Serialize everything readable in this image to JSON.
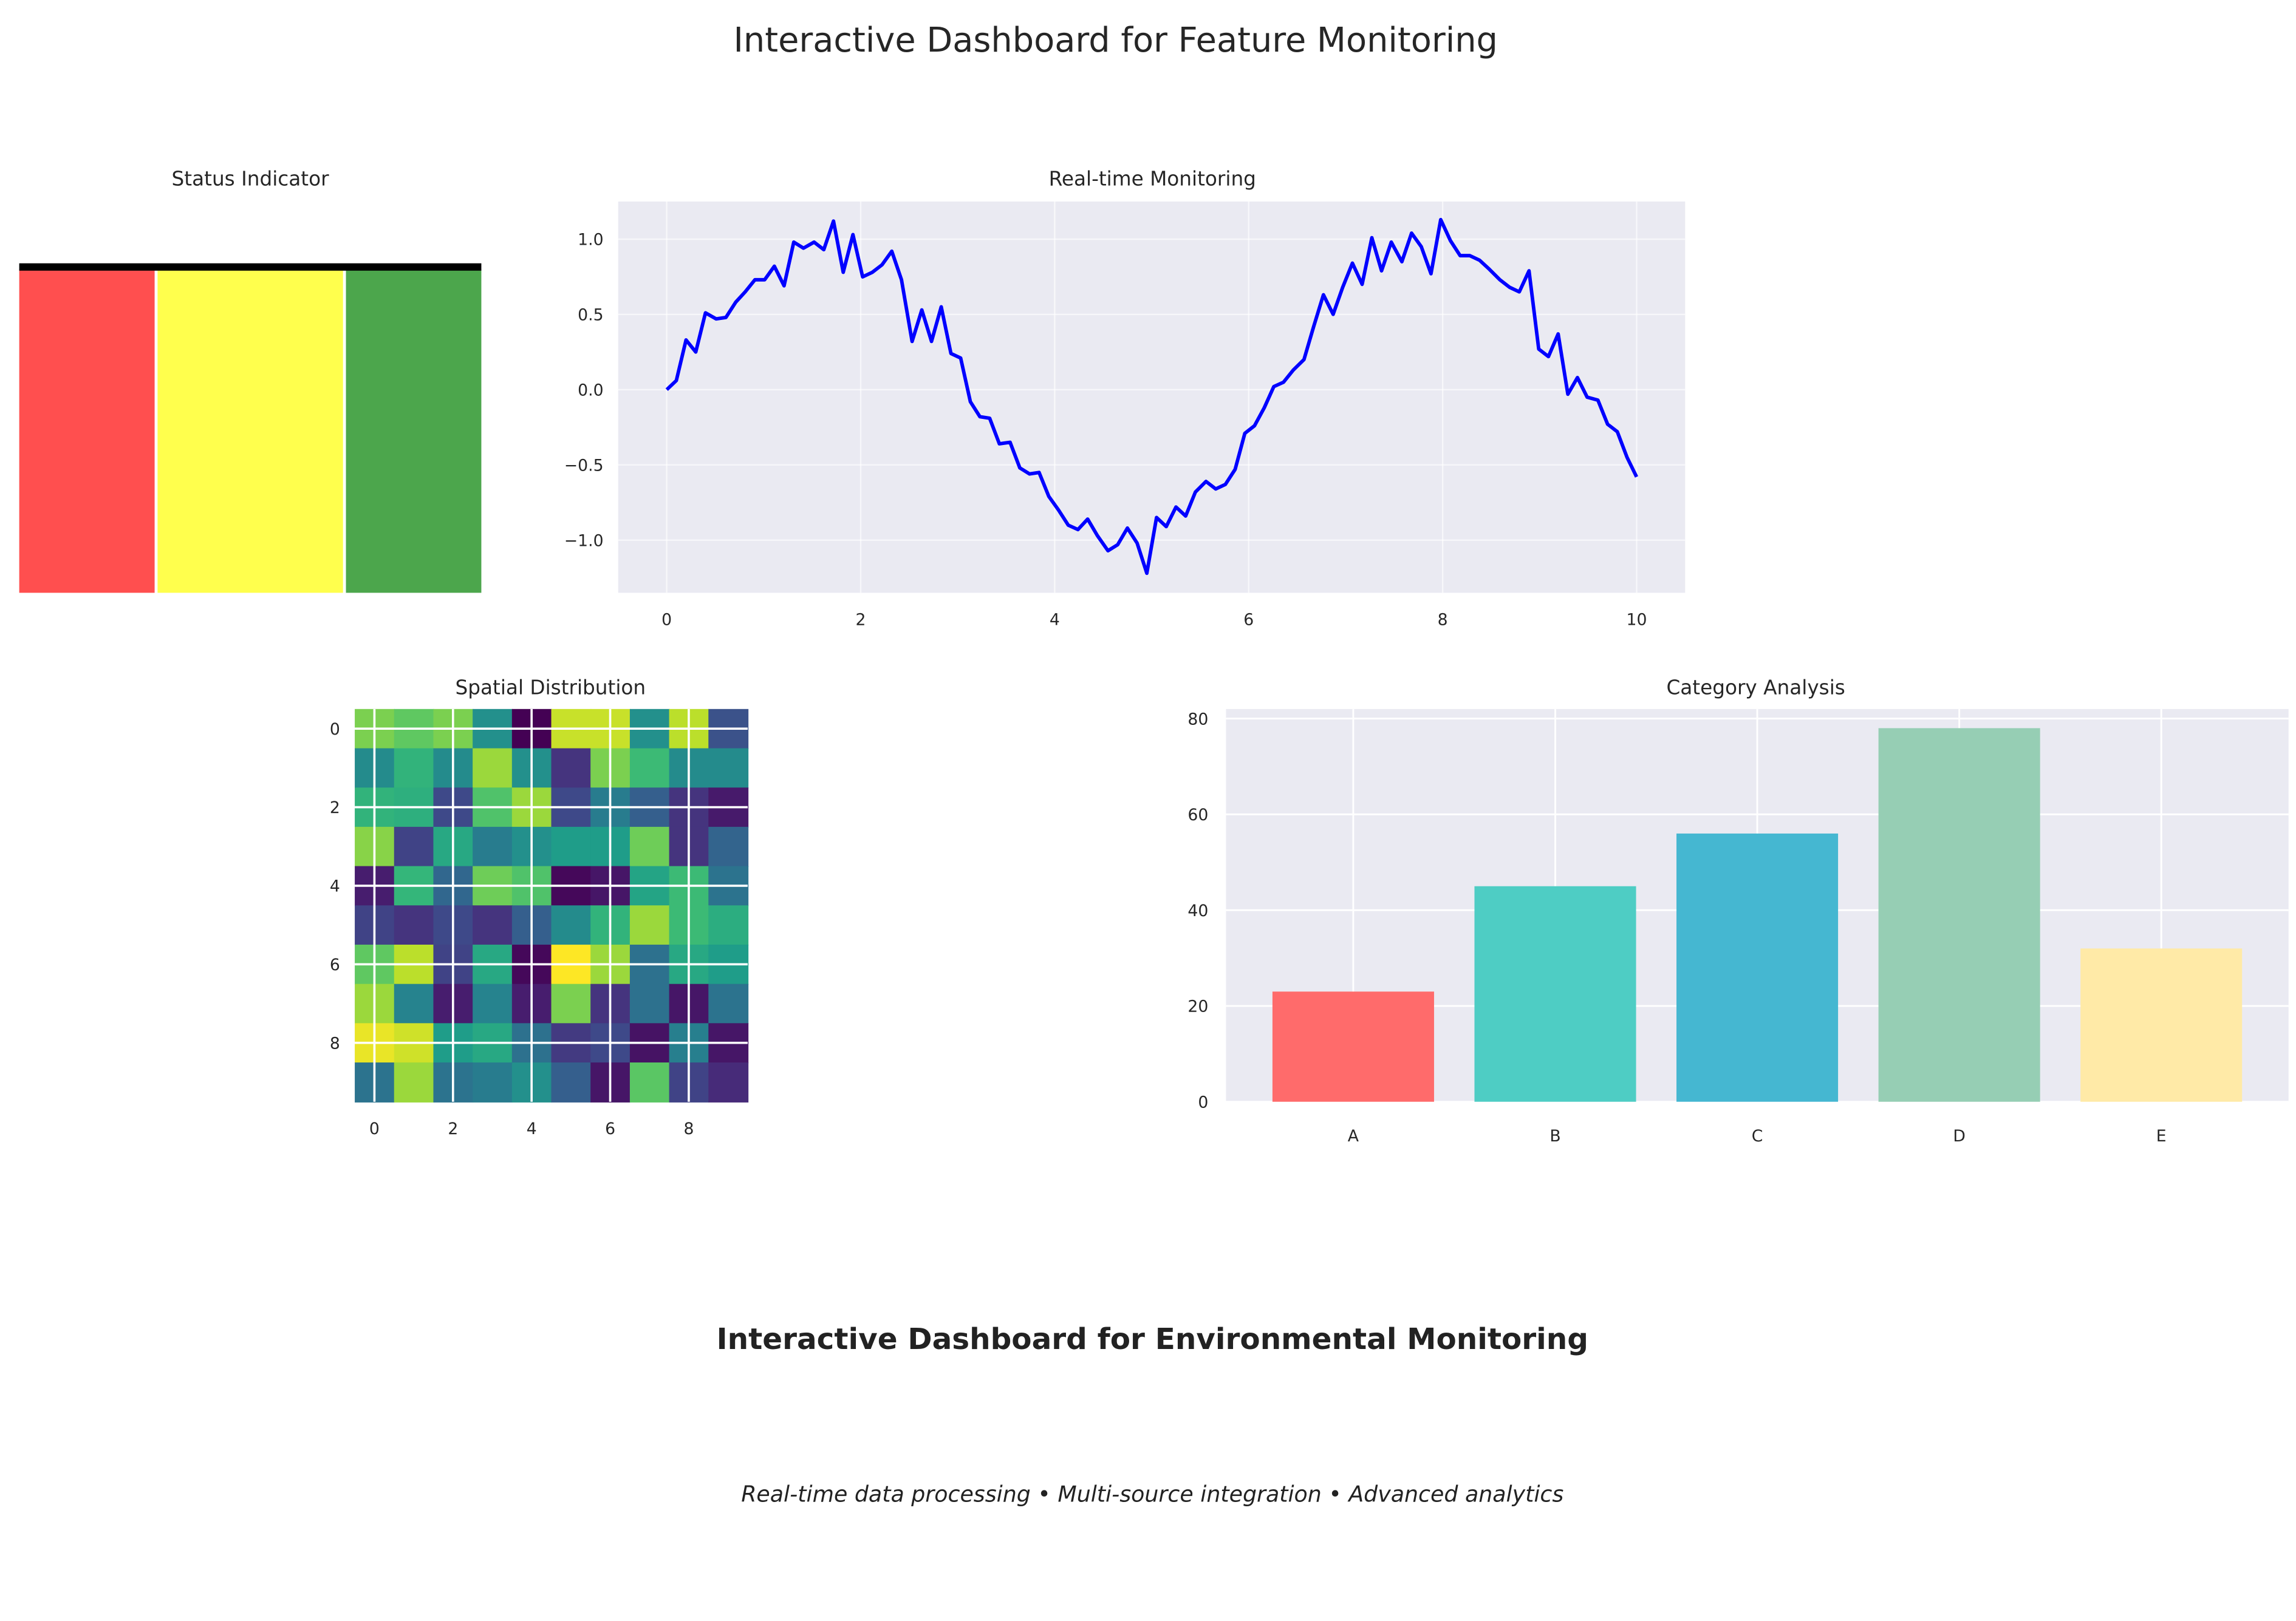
{
  "title": "Interactive Dashboard for Feature Monitoring",
  "footer": {
    "heading": "Interactive Dashboard for Environmental Monitoring",
    "tagline": "Real-time data processing • Multi-source integration • Advanced analytics"
  },
  "chart_data": [
    {
      "type": "bar",
      "title": "Status Indicator",
      "segments": [
        {
          "color": "#ff4f4f"
        },
        {
          "color": "#ffff4d"
        },
        {
          "color": "#4ca64c"
        }
      ],
      "top_line_color": "#000000",
      "axes_visible": false
    },
    {
      "type": "line",
      "title": "Real-time Monitoring",
      "color": "#0000ff",
      "grid": true,
      "xlim": [
        -0.5,
        10.5
      ],
      "ylim": [
        -1.35,
        1.25
      ],
      "xticks": [
        0,
        2,
        4,
        6,
        8,
        10
      ],
      "xtick_labels": [
        "0",
        "2",
        "4",
        "6",
        "8",
        "10"
      ],
      "yticks": [
        1.0,
        0.5,
        0.0,
        -0.5,
        -1.0
      ],
      "ytick_labels": [
        "1.0",
        "0.5",
        "0.0",
        "−0.5",
        "−1.0"
      ],
      "x": [
        0,
        0.1,
        0.2,
        0.3,
        0.4,
        0.51,
        0.61,
        0.71,
        0.81,
        0.91,
        1.01,
        1.11,
        1.21,
        1.31,
        1.41,
        1.52,
        1.62,
        1.72,
        1.82,
        1.92,
        2.02,
        2.12,
        2.22,
        2.32,
        2.42,
        2.53,
        2.63,
        2.73,
        2.83,
        2.93,
        3.03,
        3.13,
        3.23,
        3.33,
        3.43,
        3.54,
        3.64,
        3.74,
        3.84,
        3.94,
        4.04,
        4.14,
        4.24,
        4.34,
        4.44,
        4.55,
        4.65,
        4.75,
        4.85,
        4.95,
        5.05,
        5.15,
        5.25,
        5.35,
        5.45,
        5.56,
        5.66,
        5.76,
        5.86,
        5.96,
        6.06,
        6.16,
        6.26,
        6.36,
        6.46,
        6.57,
        6.67,
        6.77,
        6.87,
        6.97,
        7.07,
        7.17,
        7.27,
        7.37,
        7.47,
        7.58,
        7.68,
        7.78,
        7.88,
        7.98,
        8.08,
        8.18,
        8.28,
        8.38,
        8.48,
        8.59,
        8.69,
        8.79,
        8.89,
        8.99,
        9.09,
        9.19,
        9.29,
        9.39,
        9.49,
        9.6,
        9.7,
        9.8,
        9.9,
        10.0
      ],
      "y": [
        0.0,
        0.06,
        0.33,
        0.25,
        0.51,
        0.47,
        0.48,
        0.58,
        0.65,
        0.73,
        0.73,
        0.82,
        0.69,
        0.98,
        0.94,
        0.98,
        0.93,
        1.12,
        0.78,
        1.03,
        0.75,
        0.78,
        0.83,
        0.92,
        0.73,
        0.32,
        0.53,
        0.32,
        0.55,
        0.24,
        0.21,
        -0.08,
        -0.18,
        -0.19,
        -0.36,
        -0.35,
        -0.52,
        -0.56,
        -0.55,
        -0.71,
        -0.8,
        -0.9,
        -0.93,
        -0.86,
        -0.97,
        -1.07,
        -1.03,
        -0.92,
        -1.02,
        -1.22,
        -0.85,
        -0.91,
        -0.78,
        -0.84,
        -0.68,
        -0.61,
        -0.66,
        -0.63,
        -0.53,
        -0.29,
        -0.24,
        -0.12,
        0.02,
        0.05,
        0.13,
        0.2,
        0.42,
        0.63,
        0.5,
        0.68,
        0.84,
        0.7,
        1.01,
        0.79,
        0.98,
        0.85,
        1.04,
        0.95,
        0.77,
        1.13,
        0.99,
        0.89,
        0.89,
        0.86,
        0.8,
        0.73,
        0.68,
        0.65,
        0.79,
        0.27,
        0.22,
        0.37,
        -0.03,
        0.08,
        -0.05,
        -0.07,
        -0.23,
        -0.28,
        -0.45,
        -0.58
      ]
    },
    {
      "type": "heatmap",
      "title": "Spatial Distribution",
      "colormap": "viridis",
      "xticks": [
        0,
        2,
        4,
        6,
        8
      ],
      "xtick_labels": [
        "0",
        "2",
        "4",
        "6",
        "8"
      ],
      "yticks": [
        0,
        2,
        4,
        6,
        8
      ],
      "ytick_labels": [
        "0",
        "2",
        "4",
        "6",
        "8"
      ],
      "values": [
        [
          0.8,
          0.75,
          0.8,
          0.5,
          0.0,
          0.92,
          0.92,
          0.5,
          0.9,
          0.25
        ],
        [
          0.48,
          0.65,
          0.48,
          0.85,
          0.5,
          0.15,
          0.8,
          0.68,
          0.48,
          0.48
        ],
        [
          0.65,
          0.63,
          0.22,
          0.72,
          0.85,
          0.22,
          0.42,
          0.3,
          0.15,
          0.07
        ],
        [
          0.82,
          0.2,
          0.6,
          0.42,
          0.5,
          0.55,
          0.55,
          0.78,
          0.15,
          0.32
        ],
        [
          0.08,
          0.66,
          0.33,
          0.78,
          0.72,
          0.02,
          0.06,
          0.58,
          0.68,
          0.38
        ],
        [
          0.2,
          0.15,
          0.22,
          0.15,
          0.3,
          0.48,
          0.65,
          0.85,
          0.68,
          0.62
        ],
        [
          0.75,
          0.9,
          0.2,
          0.6,
          0.02,
          1.0,
          0.85,
          0.37,
          0.6,
          0.55
        ],
        [
          0.85,
          0.45,
          0.08,
          0.45,
          0.08,
          0.8,
          0.15,
          0.37,
          0.06,
          0.38
        ],
        [
          0.97,
          0.93,
          0.55,
          0.6,
          0.37,
          0.17,
          0.22,
          0.05,
          0.43,
          0.06
        ],
        [
          0.38,
          0.85,
          0.38,
          0.42,
          0.5,
          0.3,
          0.06,
          0.74,
          0.2,
          0.12
        ]
      ]
    },
    {
      "type": "bar",
      "title": "Category Analysis",
      "categories": [
        "A",
        "B",
        "C",
        "D",
        "E"
      ],
      "values": [
        23,
        45,
        56,
        78,
        32
      ],
      "colors": [
        "#ff6b6b",
        "#4ecdc4",
        "#45b7d1",
        "#96ceb4",
        "#ffeaa7"
      ],
      "ylim": [
        0,
        82
      ],
      "yticks": [
        0,
        20,
        40,
        60,
        80
      ],
      "ytick_labels": [
        "0",
        "20",
        "40",
        "60",
        "80"
      ],
      "grid": true
    }
  ]
}
